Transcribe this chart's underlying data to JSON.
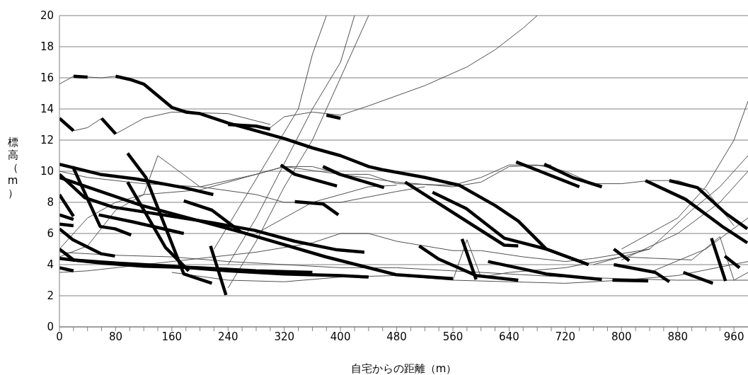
{
  "chart_data": {
    "type": "line",
    "xlabel": "自宅からの距離（m）",
    "ylabel": "標高（m）",
    "xlim": [
      0,
      980
    ],
    "ylim": [
      0,
      20
    ],
    "xticks": [
      0,
      {
        "value": 20,
        "label": null
      },
      {
        "value": 40,
        "label": null
      },
      {
        "value": 60,
        "label": null
      },
      80,
      {
        "value": 100,
        "label": null
      },
      {
        "value": 120,
        "label": null
      },
      {
        "value": 140,
        "label": null
      },
      160,
      {
        "value": 180,
        "label": null
      },
      {
        "value": 200,
        "label": null
      },
      {
        "value": 220,
        "label": null
      },
      240,
      {
        "value": 260,
        "label": null
      },
      {
        "value": 280,
        "label": null
      },
      {
        "value": 300,
        "label": null
      },
      320,
      {
        "value": 340,
        "label": null
      },
      {
        "value": 360,
        "label": null
      },
      {
        "value": 380,
        "label": null
      },
      400,
      {
        "value": 420,
        "label": null
      },
      {
        "value": 440,
        "label": null
      },
      {
        "value": 460,
        "label": null
      },
      480,
      {
        "value": 500,
        "label": null
      },
      {
        "value": 520,
        "label": null
      },
      {
        "value": 540,
        "label": null
      },
      560,
      {
        "value": 580,
        "label": null
      },
      {
        "value": 600,
        "label": null
      },
      {
        "value": 620,
        "label": null
      },
      640,
      {
        "value": 660,
        "label": null
      },
      {
        "value": 680,
        "label": null
      },
      {
        "value": 700,
        "label": null
      },
      720,
      {
        "value": 740,
        "label": null
      },
      {
        "value": 760,
        "label": null
      },
      {
        "value": 780,
        "label": null
      },
      800,
      {
        "value": 820,
        "label": null
      },
      {
        "value": 840,
        "label": null
      },
      {
        "value": 860,
        "label": null
      },
      880,
      {
        "value": 900,
        "label": null
      },
      {
        "value": 920,
        "label": null
      },
      {
        "value": 940,
        "label": null
      },
      960
    ],
    "yticks": [
      0,
      2,
      4,
      6,
      8,
      10,
      12,
      14,
      16,
      18,
      20
    ],
    "grid": "y",
    "marker": "none",
    "line_style": "solid",
    "series": [
      {
        "color": "#505050",
        "x": [
          0,
          20,
          60,
          80,
          120,
          160,
          200,
          240,
          300,
          320,
          360,
          400,
          440,
          520,
          580,
          620,
          660,
          680
        ],
        "values": [
          15.6,
          16.1,
          16.0,
          16.1,
          15.6,
          14.1,
          13.7,
          13.1,
          12.8,
          13.5,
          13.8,
          13.6,
          14.2,
          15.5,
          16.7,
          17.8,
          19.2,
          20
        ]
      },
      {
        "color": "#505050",
        "x": [
          0,
          20,
          40,
          60,
          80,
          120,
          160,
          240,
          300
        ],
        "values": [
          13.4,
          12.6,
          12.8,
          13.4,
          12.4,
          13.4,
          13.8,
          13.7,
          13.0
        ]
      },
      {
        "color": "#505050",
        "x": [
          220,
          260,
          300,
          340,
          360,
          380
        ],
        "values": [
          5,
          8,
          11,
          14,
          17.5,
          20
        ]
      },
      {
        "color": "#505050",
        "x": [
          240,
          280,
          320,
          360,
          400,
          420
        ],
        "values": [
          4,
          7,
          10.5,
          14,
          17,
          20
        ]
      },
      {
        "color": "#505050",
        "x": [
          240,
          280,
          320,
          360,
          400,
          440
        ],
        "values": [
          2.5,
          5.5,
          9,
          12,
          16,
          20
        ]
      },
      {
        "color": "#505050",
        "x": [
          800,
          880,
          920,
          960,
          980
        ],
        "values": [
          5,
          7,
          9,
          12,
          14.5
        ]
      },
      {
        "color": "#505050",
        "x": [
          760,
          840,
          900,
          940,
          980
        ],
        "values": [
          4,
          5,
          7.5,
          9,
          11
        ]
      },
      {
        "color": "#505050",
        "x": [
          800,
          880,
          940,
          980
        ],
        "values": [
          4.3,
          6,
          8,
          10
        ]
      },
      {
        "color": "#505050",
        "x": [
          840,
          920,
          980
        ],
        "values": [
          3.5,
          5,
          7
        ]
      },
      {
        "color": "#505050",
        "x": [
          0,
          40,
          120,
          200,
          280,
          320,
          360,
          400,
          440,
          480,
          560,
          600,
          640,
          680,
          720,
          760,
          800,
          840,
          880,
          920,
          960
        ],
        "values": [
          10,
          9.6,
          9.2,
          9.0,
          9.8,
          10.3,
          10.3,
          9.8,
          9.8,
          9.2,
          9.1,
          9.6,
          10.4,
          10.4,
          10.0,
          9.2,
          9.2,
          9.4,
          9.4,
          8.8,
          6.5
        ]
      },
      {
        "color": "#505050",
        "x": [
          0,
          40,
          80,
          120,
          200,
          280,
          320,
          400,
          480,
          560,
          600,
          640,
          700
        ],
        "values": [
          5,
          7,
          8,
          8.5,
          8.8,
          9.8,
          10.3,
          9.8,
          9.3,
          9.0,
          9.3,
          10.3,
          10.4
        ]
      },
      {
        "color": "#505050",
        "x": [
          0,
          40,
          80,
          120,
          140,
          200,
          280,
          320,
          360,
          400,
          480,
          520
        ],
        "values": [
          4.5,
          5.2,
          7.5,
          8.5,
          11,
          9,
          8.5,
          8,
          8,
          8,
          8.7,
          9.0
        ]
      },
      {
        "color": "#505050",
        "x": [
          0,
          40,
          120,
          200,
          280,
          360,
          400,
          440,
          480,
          560,
          600,
          660,
          720,
          760,
          800,
          840
        ],
        "values": [
          3.5,
          3.6,
          4,
          4.4,
          4.8,
          5.4,
          6.0,
          6.0,
          5.5,
          4.9,
          4.9,
          4.5,
          4.2,
          4.4,
          4.7,
          5.0
        ]
      },
      {
        "color": "#505050",
        "x": [
          0,
          80,
          160,
          240,
          320,
          400,
          480,
          560,
          640,
          720,
          800,
          880,
          980
        ],
        "values": [
          4.8,
          4.6,
          4.5,
          4.2,
          4.0,
          3.8,
          3.8,
          3.6,
          3.4,
          3.2,
          3.1,
          3.0,
          3.0
        ]
      },
      {
        "color": "#505050",
        "x": [
          160,
          240,
          320,
          400,
          480,
          560,
          640,
          720,
          800,
          880,
          980
        ],
        "values": [
          3.5,
          3.0,
          2.9,
          3.2,
          3.3,
          3.0,
          2.9,
          2.8,
          3.0,
          3.3,
          4.2
        ]
      },
      {
        "color": "#505050",
        "x": [
          280,
          320,
          360,
          400,
          440,
          480
        ],
        "values": [
          6,
          7,
          8,
          8.5,
          9,
          9.1
        ]
      },
      {
        "color": "#505050",
        "x": [
          560,
          580,
          600,
          640,
          720,
          800,
          900,
          940,
          960,
          980
        ],
        "values": [
          3,
          5.6,
          3.2,
          3.5,
          3.8,
          4.5,
          4.3,
          5.8,
          3.0,
          3.5
        ]
      },
      {
        "color": "#000000",
        "x": [
          20,
          40
        ],
        "values": [
          16.1,
          16.05
        ]
      },
      {
        "color": "#000000",
        "x": [
          80,
          100,
          120,
          160,
          180,
          200,
          240,
          280,
          320,
          360,
          400,
          440,
          459,
          520,
          569,
          620,
          653,
          693,
          753
        ],
        "values": [
          16.1,
          15.9,
          15.6,
          14.1,
          13.8,
          13.7,
          13.1,
          12.6,
          12.1,
          11.5,
          11.0,
          10.3,
          10.1,
          9.6,
          9.1,
          7.8,
          6.8,
          5.0,
          4.0
        ]
      },
      {
        "color": "#000000",
        "x": [
          240,
          280,
          300
        ],
        "values": [
          13.0,
          12.9,
          12.7
        ]
      },
      {
        "color": "#000000",
        "x": [
          0,
          20
        ],
        "values": [
          13.4,
          12.6
        ]
      },
      {
        "color": "#000000",
        "x": [
          60,
          80
        ],
        "values": [
          13.4,
          12.4
        ]
      },
      {
        "color": "#000000",
        "x": [
          380,
          400
        ],
        "values": [
          13.6,
          13.4
        ]
      },
      {
        "color": "#000000",
        "x": [
          0,
          58,
          110,
          177,
          219
        ],
        "values": [
          10.45,
          9.8,
          9.5,
          8.95,
          8.5
        ]
      },
      {
        "color": "#000000",
        "x": [
          0,
          36,
          76,
          217,
          278,
          335,
          395,
          434
        ],
        "values": [
          9.8,
          8.3,
          7.7,
          6.7,
          6.2,
          5.5,
          4.95,
          4.8
        ]
      },
      {
        "color": "#000000",
        "x": [
          0,
          19,
          59,
          79
        ],
        "values": [
          6.3,
          5.6,
          4.7,
          4.55
        ]
      },
      {
        "color": "#000000",
        "x": [
          0,
          117,
          258,
          379,
          479,
          560
        ],
        "values": [
          9.6,
          7.8,
          6.1,
          4.5,
          3.35,
          3.1
        ]
      },
      {
        "color": "#000000",
        "x": [
          0,
          20,
          80,
          160,
          240,
          320,
          400,
          440
        ],
        "values": [
          4.4,
          4.3,
          4.1,
          3.9,
          3.6,
          3.4,
          3.3,
          3.2
        ]
      },
      {
        "color": "#000000",
        "x": [
          0,
          20,
          60,
          120,
          200,
          280,
          360
        ],
        "values": [
          5.0,
          4.3,
          4.1,
          3.9,
          3.8,
          3.6,
          3.5
        ]
      },
      {
        "color": "#000000",
        "x": [
          0,
          20
        ],
        "values": [
          3.8,
          3.6
        ]
      },
      {
        "color": "#000000",
        "x": [
          0,
          20
        ],
        "values": [
          8.5,
          7.1
        ]
      },
      {
        "color": "#000000",
        "x": [
          0,
          20
        ],
        "values": [
          7.2,
          6.9
        ]
      },
      {
        "color": "#000000",
        "x": [
          0,
          20
        ],
        "values": [
          6.6,
          6.5
        ]
      },
      {
        "color": "#000000",
        "x": [
          19,
          58,
          79,
          102
        ],
        "values": [
          10.3,
          6.45,
          6.3,
          5.9
        ]
      },
      {
        "color": "#000000",
        "x": [
          97,
          123,
          177,
          217
        ],
        "values": [
          11.15,
          9.6,
          3.4,
          2.8
        ]
      },
      {
        "color": "#000000",
        "x": [
          215,
          237
        ],
        "values": [
          5.2,
          2.05
        ]
      },
      {
        "color": "#000000",
        "x": [
          97,
          151,
          184
        ],
        "values": [
          9.3,
          5.1,
          3.6
        ]
      },
      {
        "color": "#000000",
        "x": [
          492,
          633,
          653
        ],
        "values": [
          9.3,
          5.25,
          5.2
        ]
      },
      {
        "color": "#000000",
        "x": [
          531,
          579,
          633,
          693,
          753
        ],
        "values": [
          8.65,
          7.6,
          5.7,
          5.0,
          4.0
        ]
      },
      {
        "color": "#000000",
        "x": [
          650,
          740
        ],
        "values": [
          10.6,
          9.0
        ]
      },
      {
        "color": "#000000",
        "x": [
          690,
          730,
          772
        ],
        "values": [
          10.45,
          9.6,
          9.0
        ]
      },
      {
        "color": "#000000",
        "x": [
          834,
          891,
          945,
          979
        ],
        "values": [
          9.4,
          8.2,
          6.4,
          5.4
        ]
      },
      {
        "color": "#000000",
        "x": [
          868,
          908,
          948,
          979
        ],
        "values": [
          9.4,
          8.95,
          7.3,
          6.3
        ]
      },
      {
        "color": "#000000",
        "x": [
          512,
          540,
          593,
          653
        ],
        "values": [
          5.2,
          4.35,
          3.3,
          3.0
        ]
      },
      {
        "color": "#000000",
        "x": [
          610,
          693,
          772
        ],
        "values": [
          4.2,
          3.4,
          3.05
        ]
      },
      {
        "color": "#000000",
        "x": [
          789,
          848,
          868
        ],
        "values": [
          4.0,
          3.5,
          2.9
        ]
      },
      {
        "color": "#000000",
        "x": [
          928,
          948
        ],
        "values": [
          5.7,
          2.95
        ]
      },
      {
        "color": "#000000",
        "x": [
          888,
          930
        ],
        "values": [
          3.5,
          2.8
        ]
      },
      {
        "color": "#000000",
        "x": [
          573,
          593
        ],
        "values": [
          5.65,
          3.05
        ]
      },
      {
        "color": "#000000",
        "x": [
          789,
          811
        ],
        "values": [
          5.0,
          4.25
        ]
      },
      {
        "color": "#000000",
        "x": [
          947,
          968
        ],
        "values": [
          4.55,
          3.8
        ]
      },
      {
        "color": "#000000",
        "x": [
          787,
          838
        ],
        "values": [
          3.0,
          2.95
        ]
      },
      {
        "color": "#000000",
        "x": [
          56,
          104,
          177
        ],
        "values": [
          7.2,
          6.75,
          6.0
        ]
      },
      {
        "color": "#000000",
        "x": [
          177,
          217,
          258
        ],
        "values": [
          8.1,
          7.5,
          6.1
        ]
      },
      {
        "color": "#000000",
        "x": [
          315,
          335,
          395
        ],
        "values": [
          10.4,
          9.8,
          9.05
        ]
      },
      {
        "color": "#000000",
        "x": [
          375,
          399,
          462
        ],
        "values": [
          10.3,
          9.8,
          8.95
        ]
      },
      {
        "color": "#000000",
        "x": [
          335,
          375,
          397
        ],
        "values": [
          8.05,
          7.9,
          7.2
        ]
      }
    ]
  }
}
